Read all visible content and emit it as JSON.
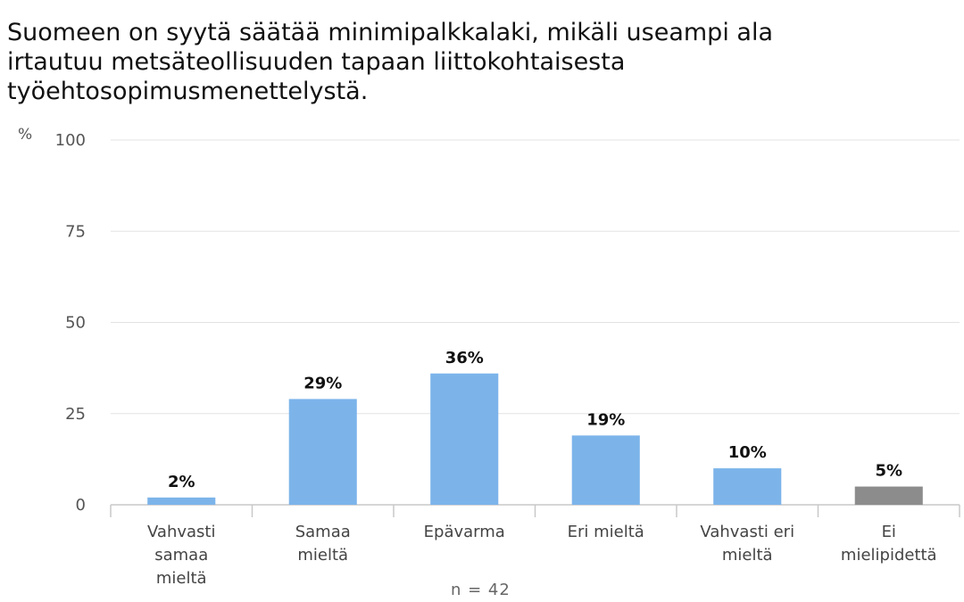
{
  "chart_data": {
    "type": "bar",
    "title_lines": [
      "Suomeen on syytä säätää minimipalkkalaki, mikäli useampi ala",
      "irtautuu metsäteollisuuden tapaan liittokohtaisesta",
      "työehtosopimusmenettelystä."
    ],
    "unit_label": "%",
    "categories": [
      [
        "Vahvasti",
        "samaa",
        "mieltä"
      ],
      [
        "Samaa",
        "mieltä"
      ],
      [
        "Epävarma"
      ],
      [
        "Eri mieltä"
      ],
      [
        "Vahvasti eri",
        "mieltä"
      ],
      [
        "Ei",
        "mielipidettä"
      ]
    ],
    "values": [
      2,
      29,
      36,
      19,
      10,
      5
    ],
    "data_labels": [
      "2%",
      "29%",
      "36%",
      "19%",
      "10%",
      "5%"
    ],
    "bar_colors": [
      "#7cb4ea",
      "#7cb4ea",
      "#7cb4ea",
      "#7cb4ea",
      "#7cb4ea",
      "#8c8c8c"
    ],
    "yticks": [
      0,
      25,
      50,
      75,
      100
    ],
    "ylim": [
      0,
      100
    ],
    "grid": true,
    "footnote": "n = 42"
  }
}
